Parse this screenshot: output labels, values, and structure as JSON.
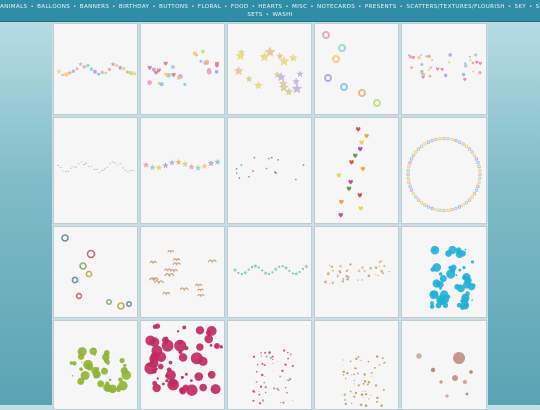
{
  "nav": {
    "items": [
      "ANIMALS",
      "BALLOONS",
      "BANNERS",
      "BIRTHDAY",
      "BUTTONS",
      "FLORAL",
      "FOOD",
      "HEARTS",
      "MISC",
      "NOTECARDS",
      "PRESENTS",
      "SCATTERS/TEXTURES/FLOURISH",
      "SKY",
      "STICKER SETS",
      "WASHI"
    ],
    "separator": "•"
  },
  "gallery": {
    "tiles": [
      {
        "name": "scatter-thumb-stars-pastel"
      },
      {
        "name": "scatter-thumb-hearts-flowers"
      },
      {
        "name": "scatter-thumb-glitter-stars"
      },
      {
        "name": "scatter-thumb-buttons-donuts"
      },
      {
        "name": "scatter-thumb-confetti-hearts"
      },
      {
        "name": "scatter-thumb-sprinkles"
      },
      {
        "name": "scatter-thumb-flower-stars"
      },
      {
        "name": "scatter-thumb-tiny-dots"
      },
      {
        "name": "scatter-thumb-hearts"
      },
      {
        "name": "scatter-thumb-dot-wreath"
      },
      {
        "name": "scatter-thumb-buttons"
      },
      {
        "name": "scatter-thumb-birds"
      },
      {
        "name": "scatter-thumb-teal-stars"
      },
      {
        "name": "scatter-thumb-glitter-trail"
      },
      {
        "name": "scatter-thumb-blue-splatter"
      },
      {
        "name": "scatter-thumb-green-splatter"
      },
      {
        "name": "scatter-thumb-pink-splatter"
      },
      {
        "name": "scatter-thumb-red-speckle"
      },
      {
        "name": "scatter-thumb-gold-speckle"
      },
      {
        "name": "scatter-thumb-pink-circles"
      }
    ]
  },
  "colors": {
    "nav_bg": "#2f8ea6",
    "nav_text": "#e9f8fb",
    "page_bg_top": "#bfe0e6",
    "page_bg_bottom": "#5aa3b4",
    "tile_bg": "#f6f6f6"
  }
}
